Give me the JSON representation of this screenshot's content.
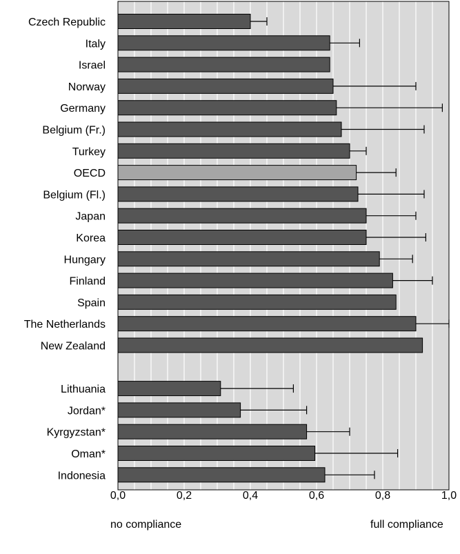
{
  "chart_data": {
    "type": "bar",
    "orientation": "horizontal",
    "categories": [
      "Czech Republic",
      "Italy",
      "Israel",
      "Norway",
      "Germany",
      "Belgium (Fr.)",
      "Turkey",
      "OECD",
      "Belgium (Fl.)",
      "Japan",
      "Korea",
      "Hungary",
      "Finland",
      "Spain",
      "The Netherlands",
      "New Zealand",
      "",
      "Lithuania",
      "Jordan*",
      "Kyrgyzstan*",
      "Oman*",
      "Indonesia"
    ],
    "values": [
      0.4,
      0.64,
      0.64,
      0.65,
      0.66,
      0.675,
      0.7,
      0.72,
      0.725,
      0.75,
      0.75,
      0.79,
      0.83,
      0.84,
      0.9,
      0.92,
      null,
      0.31,
      0.37,
      0.57,
      0.595,
      0.625
    ],
    "error_plus": [
      0.05,
      0.09,
      0.0,
      0.25,
      0.32,
      0.25,
      0.05,
      0.12,
      0.2,
      0.15,
      0.18,
      0.1,
      0.12,
      0.0,
      0.1,
      0.0,
      null,
      0.22,
      0.2,
      0.13,
      0.25,
      0.15
    ],
    "highlight": [
      "OECD"
    ],
    "xlim": [
      0,
      1.0
    ],
    "xticks": [
      "0,0",
      "0,2",
      "0,4",
      "0,6",
      "0,8",
      "1,0"
    ],
    "xlabel": "",
    "ylabel": "",
    "grid": true,
    "notes": {
      "left": "no compliance",
      "right": "full compliance"
    },
    "colors": {
      "bar": "#555555",
      "highlight_bar": "#a6a6a6",
      "plot_bg": "#d9d9d9",
      "grid": "#ffffff",
      "bar_edge": "#000000"
    }
  }
}
